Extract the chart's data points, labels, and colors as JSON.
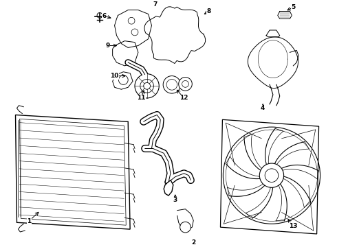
{
  "bg_color": "#ffffff",
  "lc": "#000000",
  "figsize": [
    4.9,
    3.6
  ],
  "dpi": 100,
  "labels": [
    [
      "1",
      55,
      310,
      38,
      326,
      1
    ],
    [
      "2",
      282,
      354,
      282,
      358,
      1
    ],
    [
      "3",
      255,
      283,
      255,
      295,
      1
    ],
    [
      "4",
      385,
      148,
      385,
      158,
      1
    ],
    [
      "5",
      418,
      14,
      430,
      8,
      1
    ],
    [
      "6",
      163,
      25,
      150,
      21,
      1
    ],
    [
      "7",
      225,
      8,
      225,
      4,
      1
    ],
    [
      "8",
      295,
      20,
      305,
      14,
      1
    ],
    [
      "9",
      172,
      65,
      155,
      65,
      1
    ],
    [
      "10",
      185,
      110,
      165,
      110,
      1
    ],
    [
      "11",
      210,
      128,
      204,
      143,
      1
    ],
    [
      "12",
      255,
      128,
      268,
      143,
      1
    ],
    [
      "13",
      420,
      320,
      430,
      333,
      1
    ]
  ]
}
